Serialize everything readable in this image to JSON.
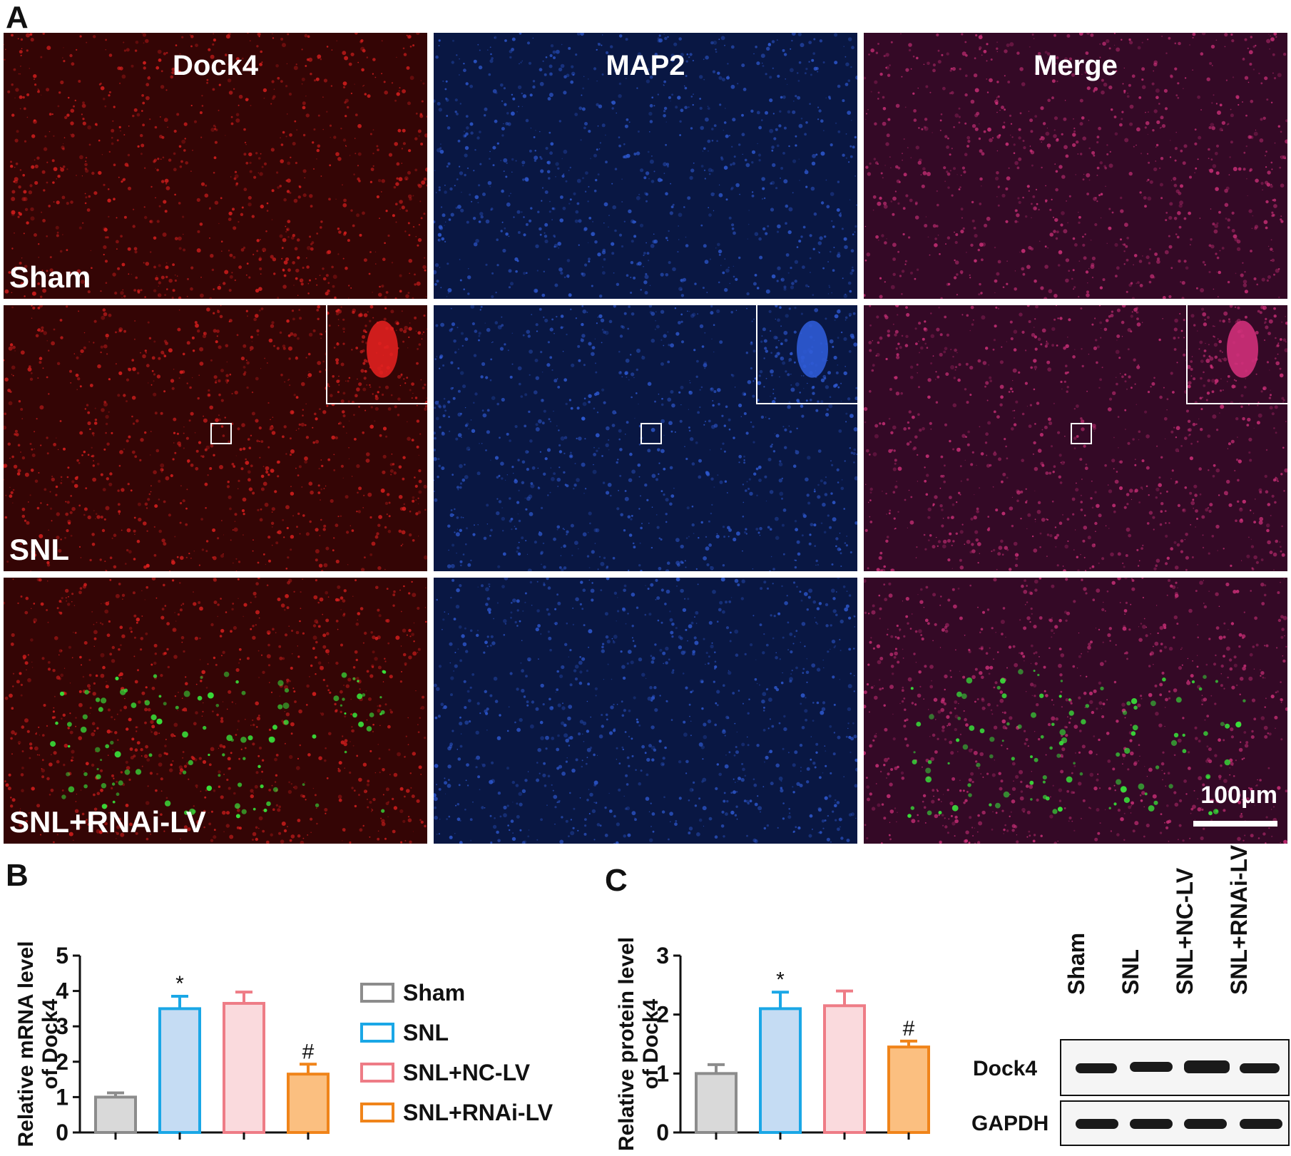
{
  "figure": {
    "panel_labels": {
      "A": "A",
      "B": "B",
      "C": "C"
    },
    "micrographs": {
      "column_titles": [
        "Dock4",
        "MAP2",
        "Merge"
      ],
      "row_labels": [
        "Sham",
        "SNL",
        "SNL+RNAi-LV"
      ],
      "scale_bar_label": "100μm",
      "colors": {
        "dock4": "#e0201f",
        "map2": "#2f5bd6",
        "merge": "#d0307a",
        "gfp": "#39e03a"
      }
    },
    "legend": {
      "items": [
        {
          "label": "Sham",
          "color": "#8c8c8c"
        },
        {
          "label": "SNL",
          "color": "#1aa7e6"
        },
        {
          "label": "SNL+NC-LV",
          "color": "#ee7c86"
        },
        {
          "label": "SNL+RNAi-LV",
          "color": "#f0841a"
        }
      ]
    },
    "western_blot": {
      "lane_labels": [
        "Sham",
        "SNL",
        "SNL+NC-LV",
        "SNL+RNAi-LV"
      ],
      "rows": [
        "Dock4",
        "GAPDH"
      ]
    }
  },
  "chart_data": [
    {
      "type": "bar",
      "panel": "B",
      "ylabel": "Relative mRNA level of Dock4",
      "ylabel_lines": [
        "Relative mRNA level",
        "of Dock4"
      ],
      "ylim": [
        0,
        5
      ],
      "yticks": [
        "0",
        "1",
        "2",
        "3",
        "4",
        "5"
      ],
      "categories": [
        "Sham",
        "SNL",
        "SNL+NC-LV",
        "SNL+RNAi-LV"
      ],
      "values": [
        1.0,
        3.5,
        3.65,
        1.65
      ],
      "errors": [
        0.12,
        0.35,
        0.32,
        0.28
      ],
      "annotations": [
        "",
        "*",
        "",
        "#"
      ],
      "fill_colors": [
        "#d9d9d9",
        "#c5dcf3",
        "#fadadd",
        "#fbbf80"
      ],
      "edge_colors": [
        "#8c8c8c",
        "#1aa7e6",
        "#ee7c86",
        "#f0841a"
      ]
    },
    {
      "type": "bar",
      "panel": "C",
      "ylabel": "Relative protein level of Dock4",
      "ylabel_lines": [
        "Relative protein level",
        "of Dock4"
      ],
      "ylim": [
        0,
        3
      ],
      "yticks": [
        "0",
        "1",
        "2",
        "3"
      ],
      "categories": [
        "Sham",
        "SNL",
        "SNL+NC-LV",
        "SNL+RNAi-LV"
      ],
      "values": [
        1.0,
        2.1,
        2.15,
        1.45
      ],
      "errors": [
        0.15,
        0.28,
        0.25,
        0.1
      ],
      "annotations": [
        "",
        "*",
        "",
        "#"
      ],
      "fill_colors": [
        "#d9d9d9",
        "#c5dcf3",
        "#fadadd",
        "#fbbf80"
      ],
      "edge_colors": [
        "#8c8c8c",
        "#1aa7e6",
        "#ee7c86",
        "#f0841a"
      ]
    }
  ]
}
